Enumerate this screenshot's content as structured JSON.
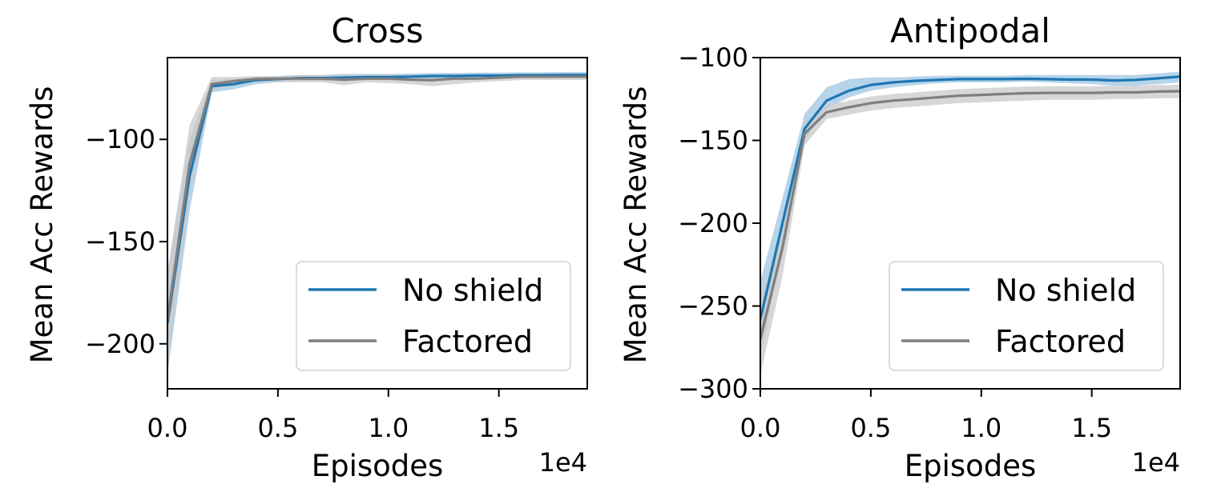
{
  "chart_data": [
    {
      "type": "line",
      "title": "Cross",
      "xlabel": "Episodes",
      "ylabel": "Mean Acc Rewards",
      "x_offset_label": "1e4",
      "xlim": [
        0,
        1.9
      ],
      "ylim": [
        -222,
        -60
      ],
      "x_ticks": [
        "0.0",
        "0.5",
        "1.0",
        "1.5"
      ],
      "x_tick_values": [
        0,
        0.5,
        1.0,
        1.5
      ],
      "y_ticks": [
        "−100",
        "−150",
        "−200"
      ],
      "y_tick_values": [
        -100,
        -150,
        -200
      ],
      "legend": {
        "position": "lower-right"
      },
      "x": [
        0,
        0.1,
        0.2,
        0.3,
        0.4,
        0.5,
        0.6,
        0.7,
        0.8,
        0.9,
        1.0,
        1.1,
        1.2,
        1.3,
        1.4,
        1.5,
        1.6,
        1.7,
        1.8,
        1.9
      ],
      "series": [
        {
          "name": "No shield",
          "color": "#1f77b4",
          "band_color": "#9ec6e3",
          "values": [
            -190,
            -118,
            -74,
            -73,
            -71,
            -70.5,
            -70,
            -70,
            -69.8,
            -69.5,
            -69.5,
            -69.3,
            -69,
            -69,
            -68.8,
            -68.8,
            -68.6,
            -68.6,
            -68.5,
            -68.5
          ],
          "lower": [
            -215,
            -135,
            -77,
            -75.5,
            -73,
            -72,
            -71.5,
            -71.5,
            -71.5,
            -71,
            -71,
            -71,
            -70.5,
            -70.5,
            -70,
            -70,
            -70,
            -70,
            -70,
            -70
          ],
          "upper": [
            -165,
            -100,
            -71,
            -70.5,
            -69.5,
            -69,
            -68.5,
            -68.5,
            -68,
            -68,
            -68,
            -67.8,
            -67.5,
            -67.5,
            -67.3,
            -67.3,
            -67.2,
            -67.2,
            -67,
            -67
          ]
        },
        {
          "name": "Factored",
          "color": "#7f7f7f",
          "band_color": "#c9c9c9",
          "values": [
            -188,
            -112,
            -73,
            -71.5,
            -70.5,
            -70.3,
            -70.3,
            -70.3,
            -70.8,
            -70.3,
            -70.3,
            -70.8,
            -71,
            -70.3,
            -70.3,
            -69.8,
            -69.3,
            -69.3,
            -69.3,
            -69.3
          ],
          "lower": [
            -212,
            -128,
            -76,
            -73.5,
            -72,
            -72,
            -72,
            -72,
            -73.5,
            -72,
            -72.5,
            -73,
            -74,
            -73,
            -72,
            -71.5,
            -71,
            -71,
            -71,
            -71
          ],
          "upper": [
            -165,
            -93,
            -69.5,
            -69.5,
            -69,
            -69,
            -68.5,
            -68.5,
            -68.5,
            -68.5,
            -68.5,
            -68.5,
            -68.5,
            -68.5,
            -68.5,
            -68,
            -68,
            -68,
            -68,
            -68
          ]
        }
      ]
    },
    {
      "type": "line",
      "title": "Antipodal",
      "xlabel": "Episodes",
      "ylabel": "Mean Acc Rewards",
      "x_offset_label": "1e4",
      "xlim": [
        0,
        1.9
      ],
      "ylim": [
        -300,
        -100
      ],
      "x_ticks": [
        "0.0",
        "0.5",
        "1.0",
        "1.5"
      ],
      "x_tick_values": [
        0,
        0.5,
        1.0,
        1.5
      ],
      "y_ticks": [
        "−100",
        "−150",
        "−200",
        "−250",
        "−300"
      ],
      "y_tick_values": [
        -100,
        -150,
        -200,
        -250,
        -300
      ],
      "legend": {
        "position": "lower-right"
      },
      "x": [
        0,
        0.1,
        0.2,
        0.3,
        0.4,
        0.5,
        0.6,
        0.7,
        0.8,
        0.9,
        1.0,
        1.1,
        1.2,
        1.3,
        1.4,
        1.5,
        1.6,
        1.7,
        1.8,
        1.9
      ],
      "series": [
        {
          "name": "No shield",
          "color": "#1f77b4",
          "band_color": "#9ec6e3",
          "values": [
            -258,
            -200,
            -143,
            -126,
            -120,
            -116.5,
            -115,
            -114,
            -113.5,
            -113,
            -113,
            -113,
            -112.8,
            -113,
            -113.3,
            -113.3,
            -113.8,
            -113.5,
            -112.5,
            -111.5
          ],
          "lower": [
            -280,
            -215,
            -150,
            -131,
            -124,
            -120,
            -118,
            -116.5,
            -115.5,
            -115,
            -115,
            -115,
            -114.5,
            -115,
            -115.5,
            -116,
            -117,
            -117,
            -116,
            -115
          ],
          "upper": [
            -235,
            -185,
            -134,
            -118,
            -113,
            -112,
            -112,
            -111.5,
            -111,
            -111,
            -111,
            -111,
            -110.5,
            -110.5,
            -110.5,
            -110.5,
            -110.5,
            -110.5,
            -109.5,
            -108.5
          ]
        },
        {
          "name": "Factored",
          "color": "#7f7f7f",
          "band_color": "#c9c9c9",
          "values": [
            -270,
            -215,
            -146,
            -133,
            -130,
            -127.5,
            -126,
            -125,
            -124,
            -123,
            -122.5,
            -122,
            -121.5,
            -121.3,
            -121.3,
            -121.3,
            -121,
            -121,
            -120.5,
            -120.3
          ],
          "lower": [
            -292,
            -232,
            -153,
            -137,
            -134.5,
            -132,
            -130.5,
            -129.5,
            -128.5,
            -127.5,
            -127,
            -126.5,
            -126,
            -125.5,
            -125.5,
            -125.5,
            -125,
            -125,
            -124.5,
            -124.5
          ],
          "upper": [
            -248,
            -198,
            -139,
            -129,
            -126,
            -123.5,
            -122,
            -121,
            -120,
            -119,
            -118.5,
            -118,
            -117.5,
            -117.3,
            -117.3,
            -117.3,
            -117,
            -117,
            -116.5,
            -116.3
          ]
        }
      ]
    }
  ]
}
